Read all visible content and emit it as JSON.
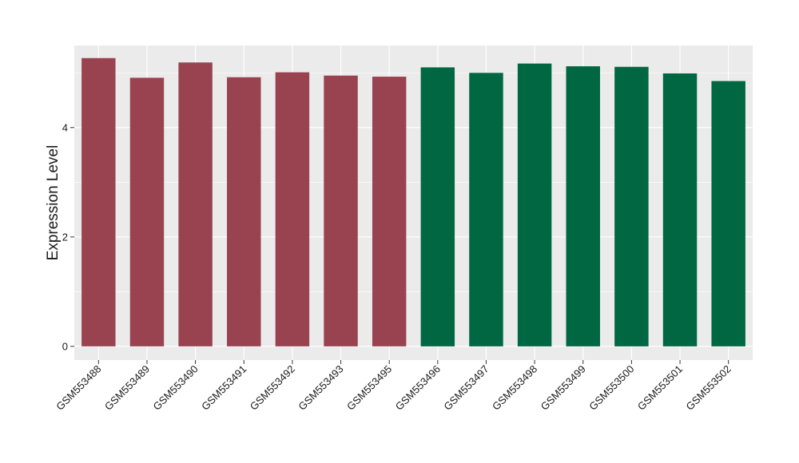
{
  "chart_data": {
    "type": "bar",
    "title": "",
    "xlabel": "",
    "ylabel": "Expression Level",
    "ylim": [
      -0.25,
      5.5
    ],
    "yticks": [
      0,
      2,
      4
    ],
    "grid": true,
    "categories": [
      "GSM553488",
      "GSM553489",
      "GSM553490",
      "GSM553491",
      "GSM553492",
      "GSM553493",
      "GSM553495",
      "GSM553496",
      "GSM553497",
      "GSM553498",
      "GSM553499",
      "GSM553500",
      "GSM553501",
      "GSM553502"
    ],
    "values": [
      5.27,
      4.91,
      5.19,
      4.92,
      5.01,
      4.95,
      4.93,
      5.1,
      5.0,
      5.17,
      5.12,
      5.11,
      4.99,
      4.85
    ],
    "bar_colors": [
      "#9a4350",
      "#9a4350",
      "#9a4350",
      "#9a4350",
      "#9a4350",
      "#9a4350",
      "#9a4350",
      "#006743",
      "#006743",
      "#006743",
      "#006743",
      "#006743",
      "#006743",
      "#006743"
    ],
    "panel_background": "#ebebeb",
    "grid_color": "#ffffff"
  }
}
